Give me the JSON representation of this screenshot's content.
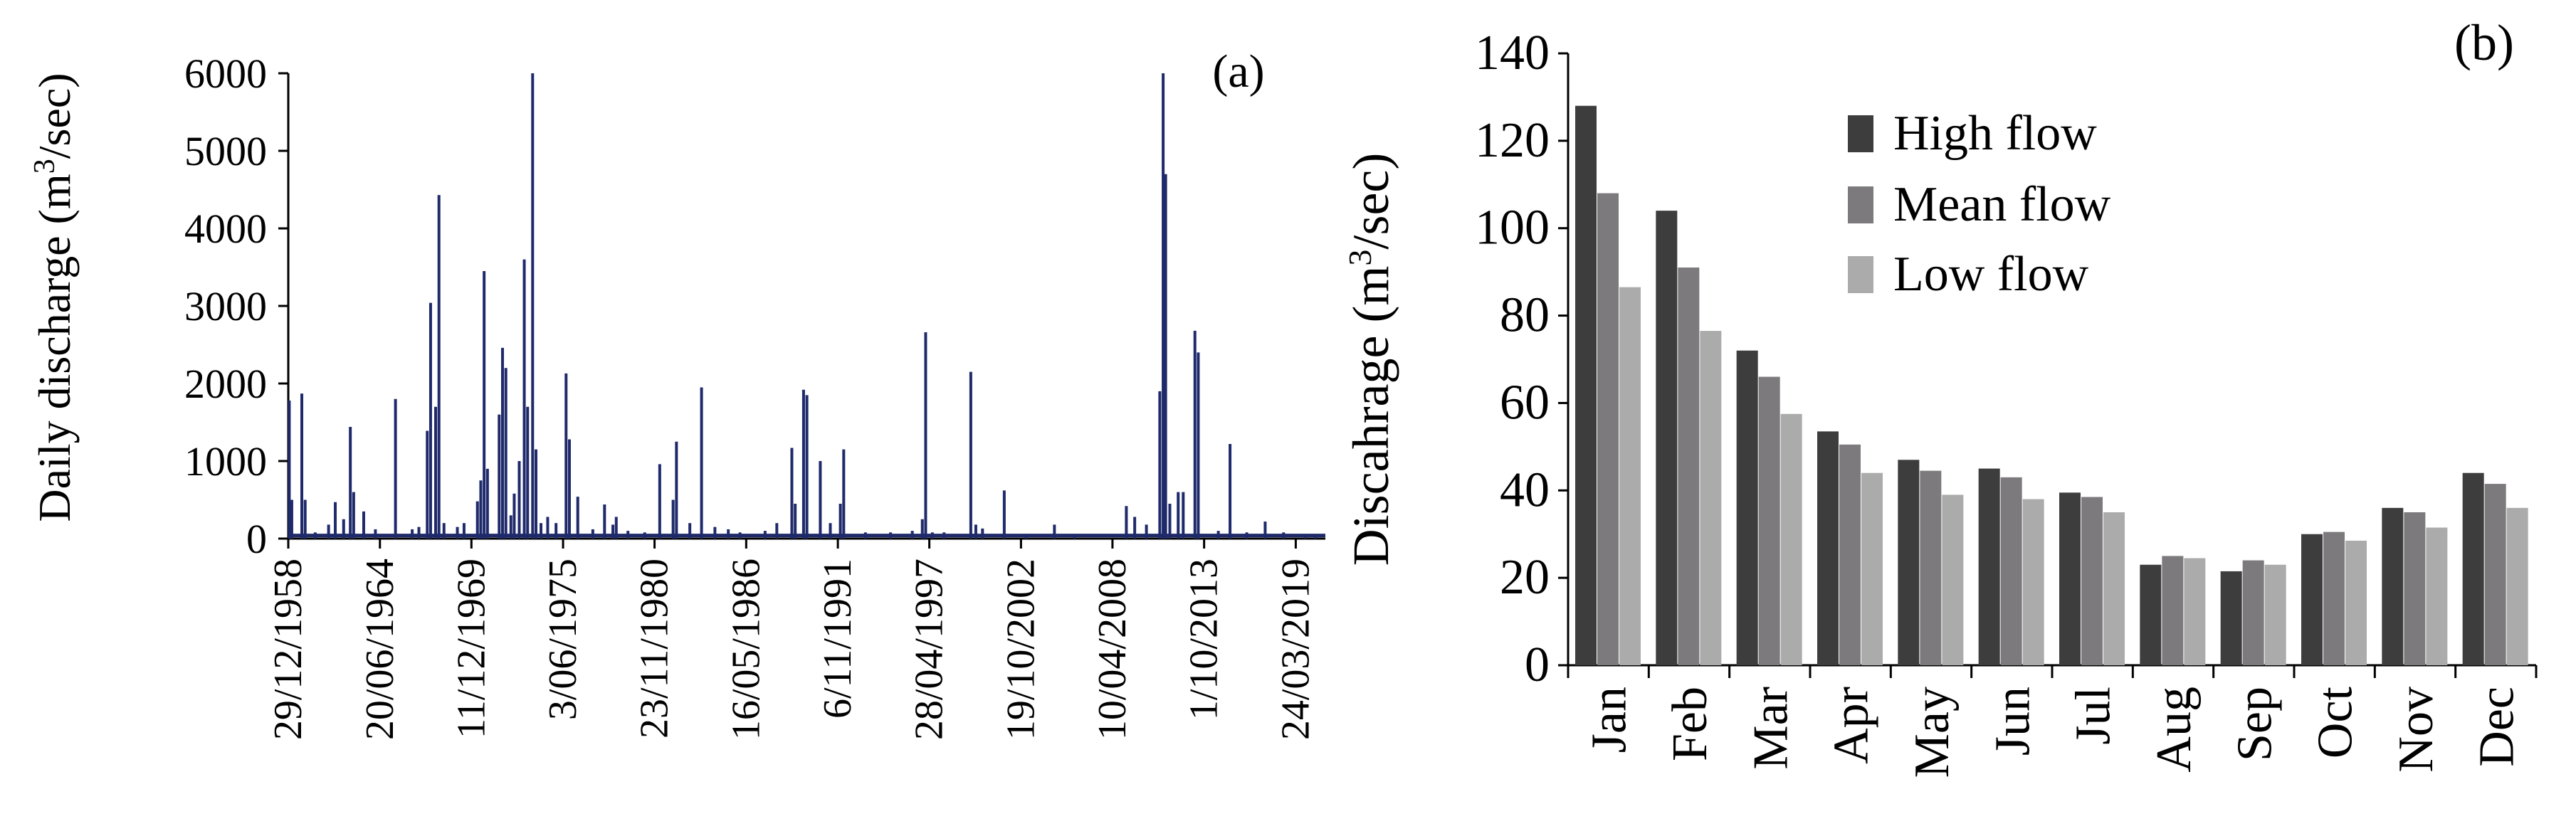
{
  "colors": {
    "discharge_line": "#1f2a6b",
    "high_flow": "#3d3d3d",
    "mean_flow": "#7d7a7d",
    "low_flow": "#ababab",
    "axis": "#000000"
  },
  "chart_data": [
    {
      "panel": "(a)",
      "type": "line",
      "title": "",
      "xlabel": "",
      "ylabel": "Daily discharge (m3/sec)",
      "ylabel_parts": {
        "pre": "Daily discharge (m",
        "sup": "3",
        "post": "/sec)"
      },
      "ylim": [
        0,
        6000
      ],
      "yticks": [
        0,
        1000,
        2000,
        3000,
        4000,
        5000,
        6000
      ],
      "xlim": [
        1958.99,
        2021.0
      ],
      "xtick_labels": [
        "29/12/1958",
        "20/06/1964",
        "11/12/1969",
        "3/06/1975",
        "23/11/1980",
        "16/05/1986",
        "6/11/1991",
        "28/04/1997",
        "19/10/2002",
        "10/04/2008",
        "1/10/2013",
        "24/03/2019"
      ],
      "xtick_years": [
        1958.99,
        1964.47,
        1969.94,
        1975.42,
        1980.89,
        1986.37,
        1991.85,
        1997.32,
        2002.8,
        2008.27,
        2013.75,
        2019.23
      ],
      "baseline": 40,
      "peaks": [
        {
          "year": 1959.05,
          "value": 1780
        },
        {
          "year": 1959.2,
          "value": 500
        },
        {
          "year": 1959.8,
          "value": 1870
        },
        {
          "year": 1960.0,
          "value": 500
        },
        {
          "year": 1960.6,
          "value": 80
        },
        {
          "year": 1961.4,
          "value": 180
        },
        {
          "year": 1961.8,
          "value": 470
        },
        {
          "year": 1962.3,
          "value": 250
        },
        {
          "year": 1962.7,
          "value": 1440
        },
        {
          "year": 1962.9,
          "value": 600
        },
        {
          "year": 1963.5,
          "value": 350
        },
        {
          "year": 1964.2,
          "value": 120
        },
        {
          "year": 1965.4,
          "value": 1800
        },
        {
          "year": 1966.4,
          "value": 120
        },
        {
          "year": 1966.8,
          "value": 150
        },
        {
          "year": 1967.3,
          "value": 1390
        },
        {
          "year": 1967.5,
          "value": 3040
        },
        {
          "year": 1967.8,
          "value": 1700
        },
        {
          "year": 1968.0,
          "value": 4430
        },
        {
          "year": 1968.3,
          "value": 200
        },
        {
          "year": 1969.1,
          "value": 150
        },
        {
          "year": 1969.5,
          "value": 200
        },
        {
          "year": 1970.3,
          "value": 480
        },
        {
          "year": 1970.5,
          "value": 750
        },
        {
          "year": 1970.7,
          "value": 3450
        },
        {
          "year": 1970.9,
          "value": 900
        },
        {
          "year": 1971.6,
          "value": 1600
        },
        {
          "year": 1971.8,
          "value": 2460
        },
        {
          "year": 1972.0,
          "value": 2200
        },
        {
          "year": 1972.3,
          "value": 300
        },
        {
          "year": 1972.5,
          "value": 580
        },
        {
          "year": 1972.8,
          "value": 1000
        },
        {
          "year": 1973.1,
          "value": 3600
        },
        {
          "year": 1973.3,
          "value": 1700
        },
        {
          "year": 1973.6,
          "value": 6000
        },
        {
          "year": 1973.8,
          "value": 1150
        },
        {
          "year": 1974.1,
          "value": 200
        },
        {
          "year": 1974.5,
          "value": 280
        },
        {
          "year": 1975.0,
          "value": 200
        },
        {
          "year": 1975.6,
          "value": 2130
        },
        {
          "year": 1975.8,
          "value": 1280
        },
        {
          "year": 1976.3,
          "value": 540
        },
        {
          "year": 1977.2,
          "value": 120
        },
        {
          "year": 1977.9,
          "value": 440
        },
        {
          "year": 1978.4,
          "value": 180
        },
        {
          "year": 1978.6,
          "value": 280
        },
        {
          "year": 1979.3,
          "value": 100
        },
        {
          "year": 1980.3,
          "value": 80
        },
        {
          "year": 1981.2,
          "value": 960
        },
        {
          "year": 1982.0,
          "value": 500
        },
        {
          "year": 1982.2,
          "value": 1250
        },
        {
          "year": 1983.0,
          "value": 200
        },
        {
          "year": 1983.7,
          "value": 1950
        },
        {
          "year": 1984.5,
          "value": 150
        },
        {
          "year": 1985.3,
          "value": 120
        },
        {
          "year": 1986.0,
          "value": 80
        },
        {
          "year": 1987.5,
          "value": 100
        },
        {
          "year": 1988.2,
          "value": 200
        },
        {
          "year": 1989.1,
          "value": 1170
        },
        {
          "year": 1989.3,
          "value": 450
        },
        {
          "year": 1989.8,
          "value": 1920
        },
        {
          "year": 1990.0,
          "value": 1850
        },
        {
          "year": 1990.8,
          "value": 1000
        },
        {
          "year": 1991.4,
          "value": 200
        },
        {
          "year": 1992.0,
          "value": 450
        },
        {
          "year": 1992.2,
          "value": 1150
        },
        {
          "year": 1993.5,
          "value": 80
        },
        {
          "year": 1995.0,
          "value": 80
        },
        {
          "year": 1996.3,
          "value": 100
        },
        {
          "year": 1996.9,
          "value": 250
        },
        {
          "year": 1997.1,
          "value": 2660
        },
        {
          "year": 1997.5,
          "value": 80
        },
        {
          "year": 1998.2,
          "value": 80
        },
        {
          "year": 1999.8,
          "value": 2150
        },
        {
          "year": 2000.1,
          "value": 180
        },
        {
          "year": 2000.5,
          "value": 130
        },
        {
          "year": 2001.8,
          "value": 620
        },
        {
          "year": 2003.1,
          "value": 60
        },
        {
          "year": 2004.8,
          "value": 180
        },
        {
          "year": 2006.0,
          "value": 60
        },
        {
          "year": 2009.1,
          "value": 420
        },
        {
          "year": 2009.6,
          "value": 280
        },
        {
          "year": 2010.3,
          "value": 180
        },
        {
          "year": 2011.1,
          "value": 1900
        },
        {
          "year": 2011.3,
          "value": 6000
        },
        {
          "year": 2011.45,
          "value": 4700
        },
        {
          "year": 2011.7,
          "value": 450
        },
        {
          "year": 2012.2,
          "value": 600
        },
        {
          "year": 2012.5,
          "value": 600
        },
        {
          "year": 2013.2,
          "value": 2680
        },
        {
          "year": 2013.4,
          "value": 2400
        },
        {
          "year": 2014.6,
          "value": 100
        },
        {
          "year": 2015.3,
          "value": 1220
        },
        {
          "year": 2016.3,
          "value": 80
        },
        {
          "year": 2017.4,
          "value": 220
        },
        {
          "year": 2018.5,
          "value": 80
        },
        {
          "year": 2019.8,
          "value": 60
        },
        {
          "year": 2020.4,
          "value": 60
        }
      ]
    },
    {
      "panel": "(b)",
      "type": "bar",
      "title": "",
      "xlabel": "",
      "ylabel": "Discahrage  (m3/sec)",
      "ylabel_parts": {
        "pre": "Discahrage  (m",
        "sup": "3",
        "post": "/sec)"
      },
      "ylim": [
        0,
        140
      ],
      "yticks": [
        0,
        20,
        40,
        60,
        80,
        100,
        120,
        140
      ],
      "legend": "top-center",
      "categories": [
        "Jan",
        "Feb",
        "Mar",
        "Apr",
        "May",
        "Jun",
        "Jul",
        "Aug",
        "Sep",
        "Oct",
        "Nov",
        "Dec"
      ],
      "series": [
        {
          "name": "High flow",
          "values": [
            128,
            104,
            72,
            53.5,
            47,
            45,
            39.5,
            23,
            21.5,
            30,
            36,
            44
          ]
        },
        {
          "name": "Mean flow",
          "values": [
            108,
            91,
            66,
            50.5,
            44.5,
            43,
            38.5,
            25,
            24,
            30.5,
            35,
            41.5
          ]
        },
        {
          "name": "Low flow",
          "values": [
            86.5,
            76.5,
            57.5,
            44,
            39,
            38,
            35,
            24.5,
            23,
            28.5,
            31.5,
            36
          ]
        }
      ]
    }
  ]
}
